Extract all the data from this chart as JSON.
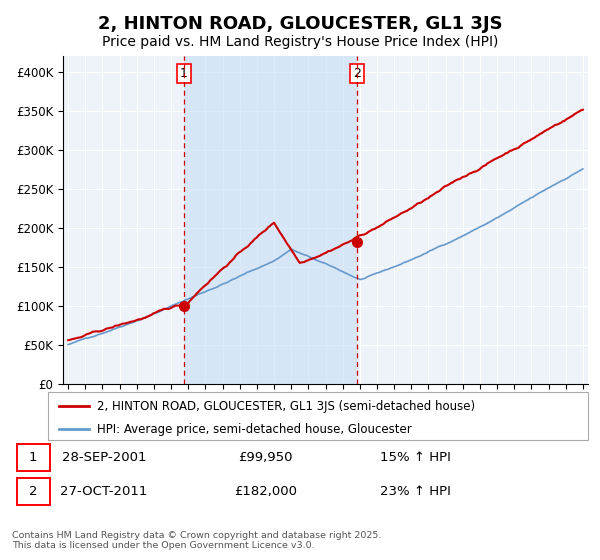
{
  "title": "2, HINTON ROAD, GLOUCESTER, GL1 3JS",
  "subtitle": "Price paid vs. HM Land Registry's House Price Index (HPI)",
  "title_fontsize": 13,
  "subtitle_fontsize": 10,
  "ylim": [
    0,
    420000
  ],
  "yticks": [
    0,
    50000,
    100000,
    150000,
    200000,
    250000,
    300000,
    350000,
    400000
  ],
  "ytick_labels": [
    "£0",
    "£50K",
    "£100K",
    "£150K",
    "£200K",
    "£250K",
    "£300K",
    "£350K",
    "£400K"
  ],
  "red_color": "#cc0000",
  "blue_color": "#6699cc",
  "plot_bg": "#eef3fa",
  "grid_color": "#ffffff",
  "marker1_value": 99950,
  "marker2_value": 182000,
  "vline1_year": 2001.75,
  "vline2_year": 2011.83,
  "legend_label_red": "2, HINTON ROAD, GLOUCESTER, GL1 3JS (semi-detached house)",
  "legend_label_blue": "HPI: Average price, semi-detached house, Gloucester",
  "table_row1": [
    "1",
    "28-SEP-2001",
    "£99,950",
    "15% ↑ HPI"
  ],
  "table_row2": [
    "2",
    "27-OCT-2011",
    "£182,000",
    "23% ↑ HPI"
  ],
  "footer": "Contains HM Land Registry data © Crown copyright and database right 2025.\nThis data is licensed under the Open Government Licence v3.0.",
  "start_year": 1995,
  "end_year": 2025
}
